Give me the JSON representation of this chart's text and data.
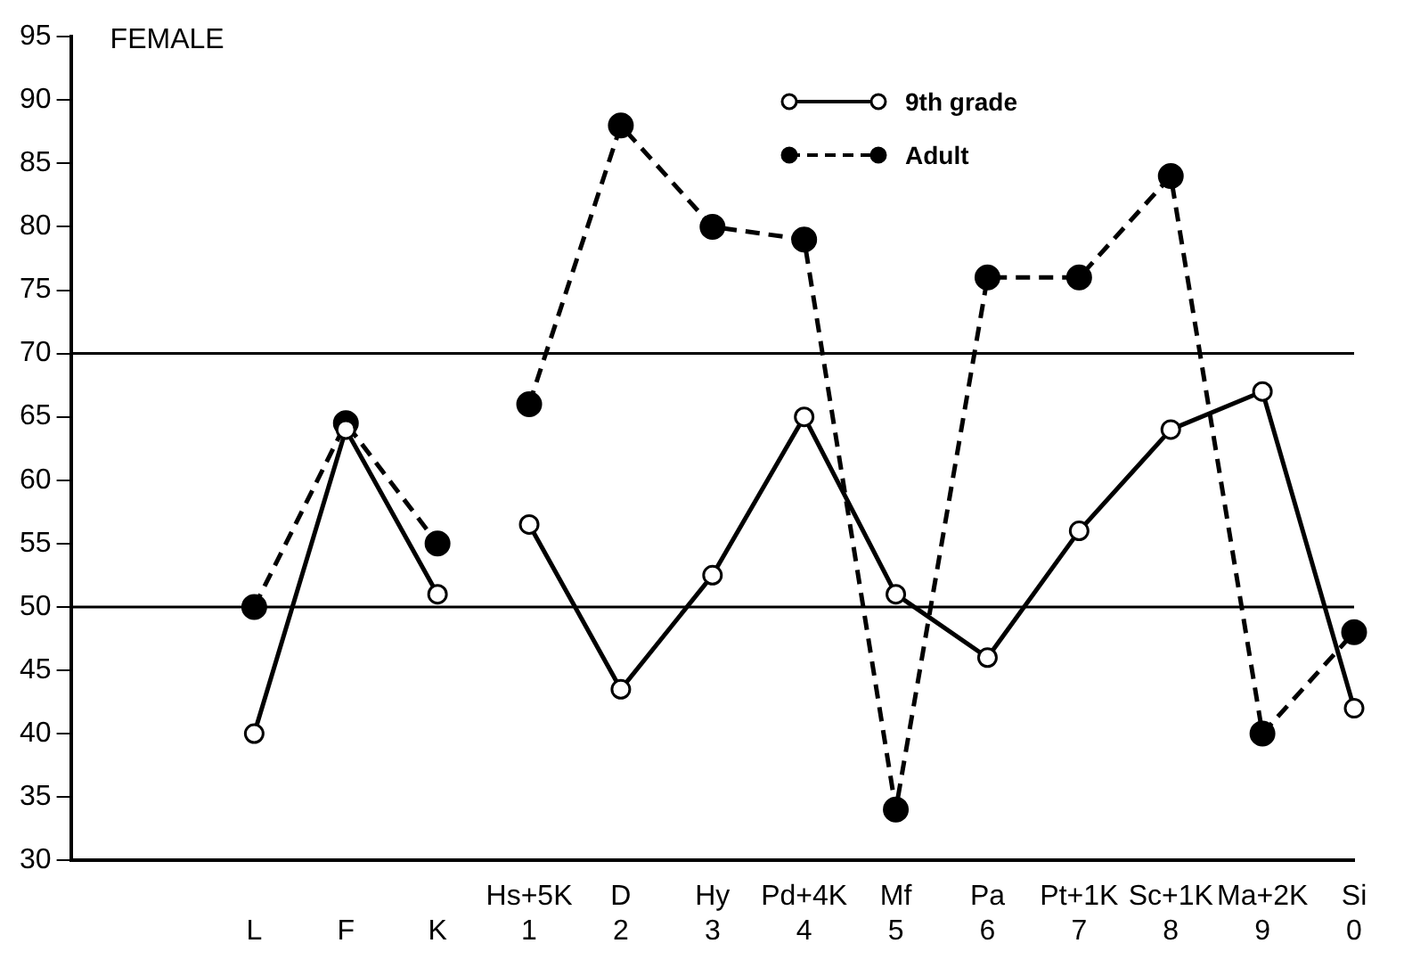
{
  "chart_data": {
    "type": "line",
    "categories": [
      null,
      null,
      "L",
      "F",
      "K",
      "Hs+5K\n1",
      "D\n2",
      "Hy\n3",
      "Pd+4K\n4",
      "Mf\n5",
      "Pa\n6",
      "Pt+1K\n7",
      "Sc+1K\n8",
      "Ma+2K\n9",
      "Si\n0"
    ],
    "series": [
      {
        "name": "9th grade",
        "color": "#000000",
        "line_style": "solid",
        "values": [
          null,
          null,
          40,
          64,
          51,
          null,
          null,
          null,
          null,
          null,
          null,
          null,
          null,
          null,
          null
        ]
      },
      {
        "color": "#000000",
        "line_style": "solid",
        "values": [
          null,
          null,
          null,
          null,
          null,
          56.5,
          43.5,
          52.5,
          65,
          51,
          46,
          56,
          64,
          67,
          42
        ]
      },
      {
        "name": "Adult",
        "color": "#000000",
        "line_style": "dashed",
        "values": [
          null,
          null,
          50,
          64.5,
          55,
          null,
          null,
          null,
          null,
          null,
          null,
          null,
          null,
          null,
          null
        ]
      },
      {
        "color": "#000000",
        "line_style": "dashed",
        "values": [
          null,
          null,
          null,
          null,
          null,
          66,
          88,
          80,
          79,
          34,
          76,
          76,
          84,
          40,
          48
        ]
      }
    ],
    "ylim": [
      30,
      95
    ],
    "yticks": [
      30,
      35,
      40,
      45,
      50,
      55,
      60,
      65,
      70,
      75,
      80,
      85,
      90,
      95
    ],
    "ref_lines": [
      {
        "axis": "y",
        "value": 50
      },
      {
        "axis": "y",
        "value": 70
      }
    ],
    "annotations": [
      "FEMALE"
    ],
    "marker": "circle",
    "grid": false,
    "legend": "top"
  }
}
